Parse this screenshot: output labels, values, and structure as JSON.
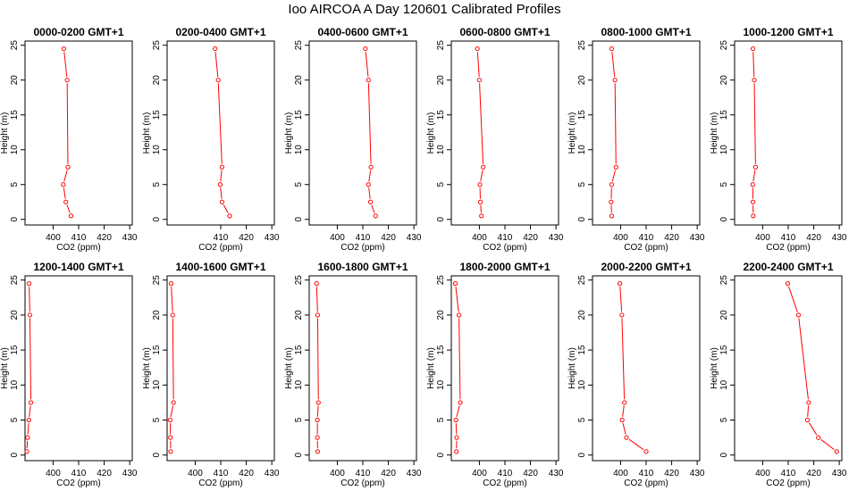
{
  "figure_title": "Ioo AIRCOA A  Day 120601  Calibrated Profiles",
  "colors": {
    "series": "#ff0000",
    "axes": "#000000"
  },
  "chart_data": [
    {
      "type": "line",
      "title": "0000-0200 GMT+1",
      "xlabel": "CO2 (ppm)",
      "ylabel": "Height (m)",
      "xlim": [
        389,
        431
      ],
      "ylim": [
        -0.8,
        25.6
      ],
      "xticks": [
        400,
        410,
        420,
        430
      ],
      "yticks": [
        0,
        5,
        10,
        15,
        20,
        25
      ],
      "x": [
        407,
        405,
        404,
        405.8,
        405.5,
        404.2
      ],
      "y": [
        0.5,
        2.5,
        5,
        7.5,
        20,
        24.5
      ]
    },
    {
      "type": "line",
      "title": "0200-0400 GMT+1",
      "xlabel": "CO2 (ppm)",
      "ylabel": "Height (m)",
      "xlim": [
        389,
        431
      ],
      "ylim": [
        -0.8,
        25.6
      ],
      "xticks": [
        410,
        420,
        430
      ],
      "yticks": [
        0,
        5,
        10,
        15,
        20,
        25
      ],
      "x": [
        413.5,
        410.5,
        409.8,
        410.5,
        409,
        407.8
      ],
      "y": [
        0.5,
        2.5,
        5,
        7.5,
        20,
        24.5
      ]
    },
    {
      "type": "line",
      "title": "0400-0600 GMT+1",
      "xlabel": "CO2 (ppm)",
      "ylabel": "Height (m)",
      "xlim": [
        389,
        431
      ],
      "ylim": [
        -0.8,
        25.6
      ],
      "xticks": [
        400,
        410,
        420,
        430
      ],
      "yticks": [
        0,
        5,
        10,
        15,
        20,
        25
      ],
      "x": [
        415,
        413,
        412.2,
        413.2,
        412.2,
        411
      ],
      "y": [
        0.5,
        2.5,
        5,
        7.5,
        20,
        24.5
      ]
    },
    {
      "type": "line",
      "title": "0600-0800 GMT+1",
      "xlabel": "CO2 (ppm)",
      "ylabel": "Height (m)",
      "xlim": [
        389,
        431
      ],
      "ylim": [
        -0.8,
        25.6
      ],
      "xticks": [
        400,
        410,
        420,
        430
      ],
      "yticks": [
        0,
        5,
        10,
        15,
        20,
        25
      ],
      "x": [
        400.8,
        400.4,
        400.2,
        401.5,
        400,
        399.2
      ],
      "y": [
        0.5,
        2.5,
        5,
        7.5,
        20,
        24.5
      ]
    },
    {
      "type": "line",
      "title": "0800-1000 GMT+1",
      "xlabel": "CO2 (ppm)",
      "ylabel": "Height (m)",
      "xlim": [
        389,
        431
      ],
      "ylim": [
        -0.8,
        25.6
      ],
      "xticks": [
        400,
        410,
        420,
        430
      ],
      "yticks": [
        0,
        5,
        10,
        15,
        20,
        25
      ],
      "x": [
        396.5,
        396.3,
        396.5,
        398.2,
        397.8,
        396.5
      ],
      "y": [
        0.5,
        2.5,
        5,
        7.5,
        20,
        24.5
      ]
    },
    {
      "type": "line",
      "title": "1000-1200 GMT+1",
      "xlabel": "CO2 (ppm)",
      "ylabel": "Height (m)",
      "xlim": [
        389,
        431
      ],
      "ylim": [
        -0.8,
        25.6
      ],
      "xticks": [
        400,
        410,
        420,
        430
      ],
      "yticks": [
        0,
        5,
        10,
        15,
        20,
        25
      ],
      "x": [
        396.3,
        396.2,
        396.1,
        397.2,
        396.7,
        396.2
      ],
      "y": [
        0.5,
        2.5,
        5,
        7.5,
        20,
        24.5
      ]
    },
    {
      "type": "line",
      "title": "1200-1400 GMT+1",
      "xlabel": "CO2 (ppm)",
      "ylabel": "Height (m)",
      "xlim": [
        389,
        431
      ],
      "ylim": [
        -0.8,
        25.6
      ],
      "xticks": [
        400,
        410,
        420,
        430
      ],
      "yticks": [
        0,
        5,
        10,
        15,
        20,
        25
      ],
      "x": [
        389.7,
        390,
        390.5,
        391.3,
        390.9,
        390.6
      ],
      "y": [
        0.5,
        2.5,
        5,
        7.5,
        20,
        24.5
      ]
    },
    {
      "type": "line",
      "title": "1400-1600 GMT+1",
      "xlabel": "CO2 (ppm)",
      "ylabel": "Height (m)",
      "xlim": [
        389,
        431
      ],
      "ylim": [
        -0.8,
        25.6
      ],
      "xticks": [
        400,
        410,
        420,
        430
      ],
      "yticks": [
        0,
        5,
        10,
        15,
        20,
        25
      ],
      "x": [
        390.4,
        390.3,
        390.2,
        391.5,
        391.2,
        390.6
      ],
      "y": [
        0.5,
        2.5,
        5,
        7.5,
        20,
        24.5
      ]
    },
    {
      "type": "line",
      "title": "1600-1800 GMT+1",
      "xlabel": "CO2 (ppm)",
      "ylabel": "Height (m)",
      "xlim": [
        389,
        431
      ],
      "ylim": [
        -0.8,
        25.6
      ],
      "xticks": [
        400,
        410,
        420,
        430
      ],
      "yticks": [
        0,
        5,
        10,
        15,
        20,
        25
      ],
      "x": [
        392.3,
        392.2,
        392.2,
        392.6,
        392.3,
        391.9
      ],
      "y": [
        0.5,
        2.5,
        5,
        7.5,
        20,
        24.5
      ]
    },
    {
      "type": "line",
      "title": "1800-2000 GMT+1",
      "xlabel": "CO2 (ppm)",
      "ylabel": "Height (m)",
      "xlim": [
        389,
        431
      ],
      "ylim": [
        -0.8,
        25.6
      ],
      "xticks": [
        400,
        410,
        420,
        430
      ],
      "yticks": [
        0,
        5,
        10,
        15,
        20,
        25
      ],
      "x": [
        391,
        391.1,
        390.8,
        392.5,
        392,
        390.6
      ],
      "y": [
        0.5,
        2.5,
        5,
        7.5,
        20,
        24.5
      ]
    },
    {
      "type": "line",
      "title": "2000-2200 GMT+1",
      "xlabel": "CO2 (ppm)",
      "ylabel": "Height (m)",
      "xlim": [
        389,
        431
      ],
      "ylim": [
        -0.8,
        25.6
      ],
      "xticks": [
        400,
        410,
        420,
        430
      ],
      "yticks": [
        0,
        5,
        10,
        15,
        20,
        25
      ],
      "x": [
        410,
        402.3,
        400.6,
        401.5,
        400.5,
        399.7
      ],
      "y": [
        0.5,
        2.5,
        5,
        7.5,
        20,
        24.5
      ]
    },
    {
      "type": "line",
      "title": "2200-2400 GMT+1",
      "xlabel": "CO2 (ppm)",
      "ylabel": "Height (m)",
      "xlim": [
        389,
        431
      ],
      "ylim": [
        -0.8,
        25.6
      ],
      "xticks": [
        400,
        410,
        420,
        430
      ],
      "yticks": [
        0,
        5,
        10,
        15,
        20,
        25
      ],
      "x": [
        429,
        421.8,
        417.5,
        418,
        414,
        409.8
      ],
      "y": [
        0.5,
        2.5,
        5,
        7.5,
        20,
        24.5
      ]
    }
  ]
}
